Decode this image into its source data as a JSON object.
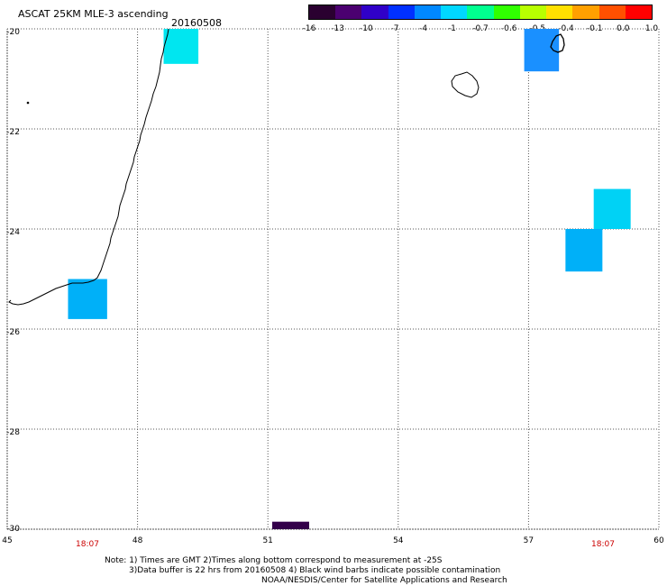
{
  "header": {
    "title": "ASCAT 25KM MLE-3 ascending",
    "date": "20160508"
  },
  "colorbar": {
    "labels": [
      "-16",
      "-13",
      "-10",
      "-7",
      "-4",
      "-1",
      "-0.7",
      "-0.6",
      "-0.5",
      "-0.4",
      "-0.1",
      "0.0",
      "1.0"
    ],
    "colors": [
      "#2a0030",
      "#4b0070",
      "#3000c8",
      "#0030ff",
      "#0088ff",
      "#00d8ff",
      "#00ff90",
      "#30ff00",
      "#b8ff00",
      "#ffe000",
      "#ffa000",
      "#ff5000",
      "#ff0000"
    ]
  },
  "axes": {
    "x_ticks": [
      "45",
      "48",
      "51",
      "54",
      "57",
      "60"
    ],
    "y_ticks": [
      "-20",
      "-22",
      "-24",
      "-26",
      "-28",
      "-30"
    ],
    "xlim": [
      45,
      60
    ],
    "ylim": [
      -30,
      -20
    ],
    "grid": "dotted"
  },
  "time_labels": [
    "18:07",
    "18:07"
  ],
  "swaths": [
    {
      "lon0": 48.6,
      "lon1": 49.4,
      "lat0": -20.0,
      "lat1": -20.7,
      "color": "#00e6f0"
    },
    {
      "lon0": 46.4,
      "lon1": 47.3,
      "lat0": -25.0,
      "lat1": -25.8,
      "color": "#00b0f8"
    },
    {
      "lon0": 56.9,
      "lon1": 57.7,
      "lat0": -20.0,
      "lat1": -20.85,
      "color": "#1a90ff"
    },
    {
      "lon0": 58.5,
      "lon1": 59.35,
      "lat0": -23.2,
      "lat1": -24.0,
      "color": "#00d2f5"
    },
    {
      "lon0": 57.85,
      "lon1": 58.7,
      "lat0": -24.0,
      "lat1": -24.85,
      "color": "#00b0f8"
    },
    {
      "lon0": 51.1,
      "lon1": 51.95,
      "lat0": -29.85,
      "lat1": -30.0,
      "color": "#33004a"
    }
  ],
  "notes": {
    "line1": "Note: 1) Times are GMT 2)Times along bottom correspond to measurement at -25S",
    "line2": "3)Data buffer is 22 hrs from 20160508 4) Black wind barbs indicate possible contamination",
    "line3": "NOAA/NESDIS/Center for Satellite Applications and Research"
  }
}
